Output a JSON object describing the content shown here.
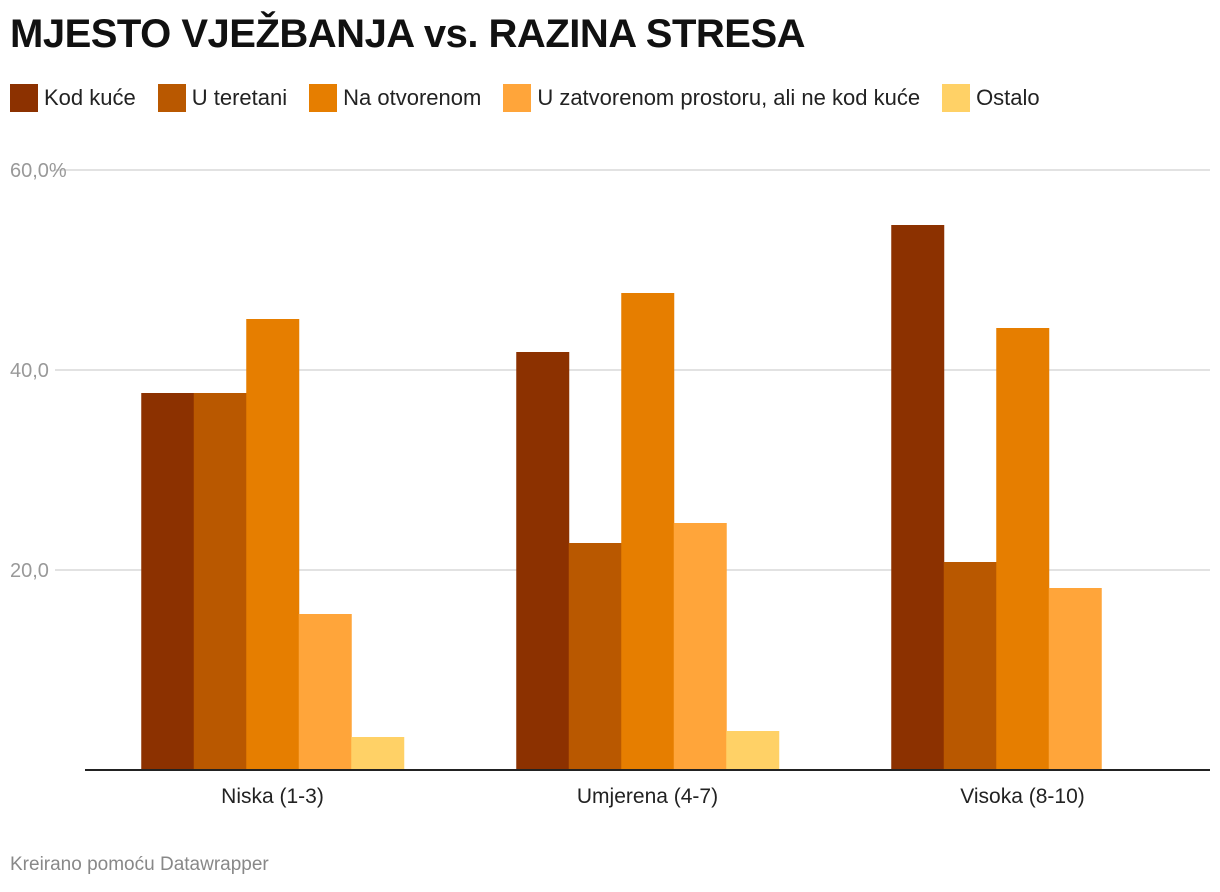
{
  "chart_data": {
    "type": "bar",
    "title": "MJESTO VJEŽBANJA vs. RAZINA STRESA",
    "categories": [
      "Niska (1-3)",
      "Umjerena (4-7)",
      "Visoka (8-10)"
    ],
    "series": [
      {
        "name": "Kod kuće",
        "color": "#8c3100",
        "values": [
          37.7,
          41.8,
          54.5
        ]
      },
      {
        "name": "U teretani",
        "color": "#b95800",
        "values": [
          37.7,
          22.7,
          20.8
        ]
      },
      {
        "name": "Na otvorenom",
        "color": "#e67e00",
        "values": [
          45.1,
          47.7,
          44.2
        ]
      },
      {
        "name": "U zatvorenom prostoru, ali ne kod kuće",
        "color": "#ffa53a",
        "values": [
          15.6,
          24.7,
          18.2
        ]
      },
      {
        "name": "Ostalo",
        "color": "#ffd166",
        "values": [
          3.3,
          3.9,
          0
        ]
      }
    ],
    "yticks": [
      {
        "value": 60,
        "label": "60,0%"
      },
      {
        "value": 40,
        "label": "40,0"
      },
      {
        "value": 20,
        "label": "20,0"
      }
    ],
    "ylim": [
      0,
      60
    ],
    "grid": true,
    "legend": "top-left",
    "xlabel": "",
    "ylabel": ""
  },
  "footer": "Kreirano pomoću Datawrapper"
}
